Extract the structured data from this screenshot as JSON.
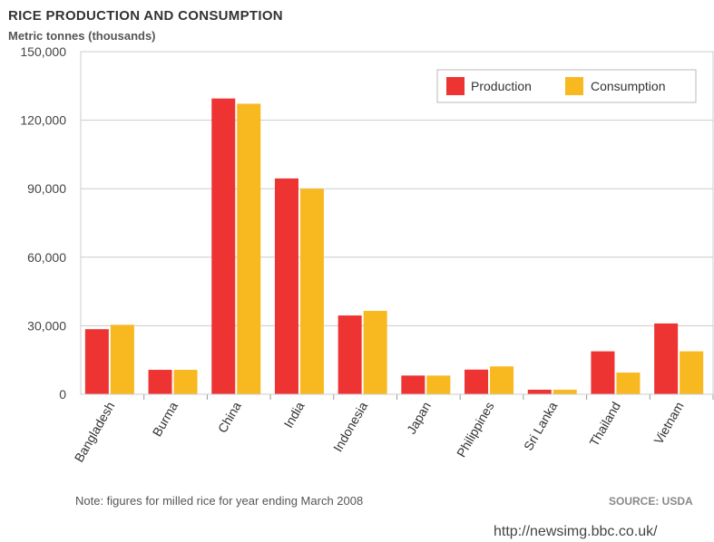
{
  "header": {
    "title": "RICE PRODUCTION AND CONSUMPTION",
    "subtitle": "Metric tonnes (thousands)"
  },
  "footer": {
    "note": "Note: figures for milled rice for year ending March 2008",
    "source": "SOURCE: USDA",
    "url": "http://newsimg.bbc.co.uk/"
  },
  "chart_data": {
    "type": "bar",
    "title": "RICE PRODUCTION AND CONSUMPTION",
    "ylabel": "Metric tonnes (thousands)",
    "xlabel": "",
    "ylim": [
      0,
      150000
    ],
    "yticks": [
      0,
      30000,
      60000,
      90000,
      120000,
      150000
    ],
    "ytick_labels": [
      "0",
      "30,000",
      "60,000",
      "90,000",
      "120,000",
      "150,000"
    ],
    "grid": true,
    "legend_position": "top-right",
    "categories": [
      "Bangladesh",
      "Burma",
      "China",
      "India",
      "Indonesia",
      "Japan",
      "Philippines",
      "Sri Lanka",
      "Thailand",
      "Vietnam"
    ],
    "series": [
      {
        "name": "Production",
        "color": "#ee3333",
        "values": [
          28500,
          10700,
          129500,
          94500,
          34500,
          8200,
          10800,
          2000,
          18800,
          31000
        ]
      },
      {
        "name": "Consumption",
        "color": "#f8b81f",
        "values": [
          30400,
          10700,
          127200,
          90000,
          36500,
          8200,
          12200,
          2000,
          9500,
          18800
        ]
      }
    ]
  }
}
